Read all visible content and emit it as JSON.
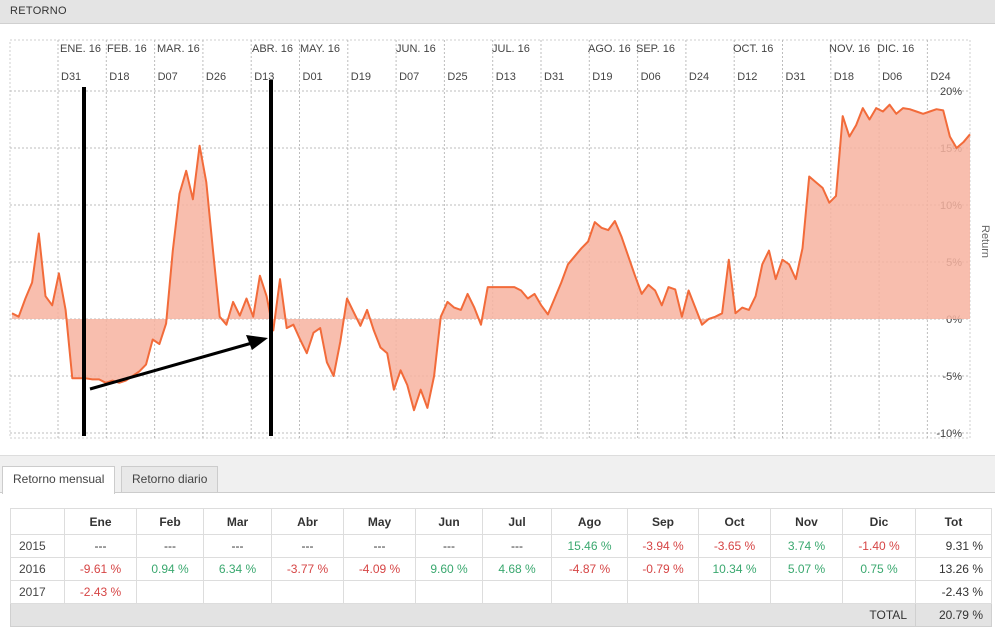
{
  "panel": {
    "title": "RETORNO"
  },
  "chart_data": {
    "type": "area",
    "ylabel": "Return",
    "ylim": [
      -10,
      20
    ],
    "y_ticks": [
      {
        "value": 20,
        "label": "20%"
      },
      {
        "value": 15,
        "label": "15%"
      },
      {
        "value": 10,
        "label": "10%"
      },
      {
        "value": 5,
        "label": "5%"
      },
      {
        "value": 0,
        "label": "0%"
      },
      {
        "value": -5,
        "label": "-5%"
      },
      {
        "value": -10,
        "label": "-10%"
      }
    ],
    "x_day_ticks": [
      "D31",
      "D18",
      "D07",
      "D26",
      "D13",
      "D01",
      "D19",
      "D07",
      "D25",
      "D13",
      "D31",
      "D19",
      "D06",
      "D24",
      "D12",
      "D31",
      "D18",
      "D06",
      "D24"
    ],
    "x_month_ticks": [
      "ENE. 16",
      "FEB. 16",
      "MAR. 16",
      "ABR. 16",
      "MAY. 16",
      "JUN. 16",
      "JUL. 16",
      "AGO. 16",
      "SEP. 16",
      "OCT. 16",
      "NOV. 16",
      "DIC. 16"
    ],
    "grid": true,
    "series": [
      {
        "color": "#f26b3a",
        "fill": "#f7b3a0",
        "values": [
          0.5,
          0.2,
          1.8,
          3.2,
          7.5,
          2.0,
          1.2,
          4.0,
          0.8,
          -5.2,
          -5.2,
          -5.2,
          -5.3,
          -5.3,
          -5.6,
          -5.4,
          -5.6,
          -5.4,
          -5.0,
          -4.6,
          -4.0,
          -1.8,
          -2.2,
          -0.4,
          6.0,
          11.0,
          13.0,
          10.5,
          15.2,
          12.0,
          6.0,
          0.2,
          -0.5,
          1.5,
          0.3,
          1.8,
          0.2,
          3.8,
          2.0,
          -1.0,
          3.5,
          -0.8,
          -0.5,
          -1.8,
          -3.0,
          -1.2,
          -0.8,
          -3.8,
          -5.0,
          -2.0,
          1.8,
          0.6,
          -0.6,
          0.8,
          -1.0,
          -2.5,
          -3.0,
          -6.2,
          -4.5,
          -5.8,
          -8.0,
          -6.2,
          -7.8,
          -5.0,
          0.2,
          1.5,
          1.0,
          0.8,
          2.2,
          1.0,
          -0.5,
          2.8,
          2.8,
          2.8,
          2.8,
          2.8,
          2.5,
          1.8,
          2.2,
          1.2,
          0.4,
          1.8,
          3.2,
          4.8,
          5.5,
          6.2,
          6.8,
          8.5,
          8.0,
          7.8,
          8.6,
          7.2,
          5.5,
          3.8,
          2.2,
          3.0,
          2.5,
          1.2,
          2.8,
          2.6,
          0.2,
          2.5,
          1.0,
          -0.5,
          0.0,
          0.2,
          0.5,
          5.2,
          0.5,
          1.0,
          0.8,
          2.0,
          4.8,
          6.0,
          3.5,
          5.2,
          4.8,
          3.5,
          6.2,
          12.5,
          12.0,
          11.5,
          10.2,
          10.8,
          17.8,
          16.0,
          17.0,
          18.5,
          17.5,
          18.5,
          18.2,
          18.8,
          18.0,
          18.5,
          18.4,
          18.2,
          18.0,
          18.2,
          18.4,
          18.3,
          16.0,
          15.0,
          15.5,
          16.2
        ]
      }
    ],
    "annotation": "black arrow and two vertical markers (hand-drawn overlay)"
  },
  "tabs": [
    {
      "label": "Retorno mensual",
      "active": true
    },
    {
      "label": "Retorno diario",
      "active": false
    }
  ],
  "table": {
    "headers": [
      "",
      "Ene",
      "Feb",
      "Mar",
      "Abr",
      "May",
      "Jun",
      "Jul",
      "Ago",
      "Sep",
      "Oct",
      "Nov",
      "Dic",
      "Tot"
    ],
    "rows": [
      {
        "year": "2015",
        "cells": [
          "---",
          "---",
          "---",
          "---",
          "---",
          "---",
          "---",
          "15.46 %",
          "-3.94 %",
          "-3.65 %",
          "3.74 %",
          "-1.40 %"
        ],
        "tot": "9.31 %"
      },
      {
        "year": "2016",
        "cells": [
          "-9.61 %",
          "0.94 %",
          "6.34 %",
          "-3.77 %",
          "-4.09 %",
          "9.60 %",
          "4.68 %",
          "-4.87 %",
          "-0.79 %",
          "10.34 %",
          "5.07 %",
          "0.75 %"
        ],
        "tot": "13.26 %"
      },
      {
        "year": "2017",
        "cells": [
          "-2.43 %",
          "",
          "",
          "",
          "",
          "",
          "",
          "",
          "",
          "",
          "",
          ""
        ],
        "tot": "-2.43 %"
      }
    ],
    "total_label": "TOTAL",
    "total_value": "20.79 %"
  }
}
